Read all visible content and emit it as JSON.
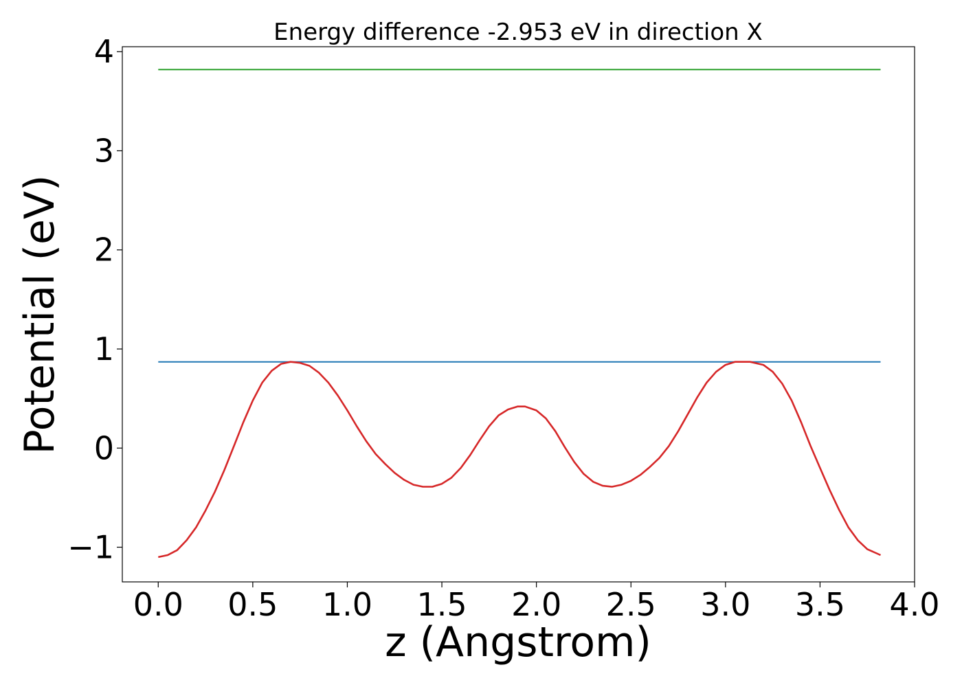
{
  "chart_data": {
    "type": "line",
    "title": "Energy difference -2.953 eV in direction X",
    "xlabel": "z (Angstrom)",
    "ylabel": "Potential (eV)",
    "xlim": [
      -0.19,
      4.0
    ],
    "ylim": [
      -1.35,
      4.05
    ],
    "x_ticks": [
      0.0,
      0.5,
      1.0,
      1.5,
      2.0,
      2.5,
      3.0,
      3.5,
      4.0
    ],
    "x_tick_labels": [
      "0.0",
      "0.5",
      "1.0",
      "1.5",
      "2.0",
      "2.5",
      "3.0",
      "3.5",
      "4.0"
    ],
    "y_ticks": [
      -1,
      0,
      1,
      2,
      3,
      4
    ],
    "y_tick_labels": [
      "−1",
      "0",
      "1",
      "2",
      "3",
      "4"
    ],
    "grid": false,
    "legend": "none",
    "series": [
      {
        "color": "#2ca02c",
        "x": [
          0.0,
          3.82
        ],
        "y": [
          3.82,
          3.82
        ]
      },
      {
        "color": "#1f77b4",
        "x": [
          0.0,
          3.82
        ],
        "y": [
          0.87,
          0.87
        ]
      },
      {
        "color": "#d62728",
        "x": [
          0.0,
          0.05,
          0.1,
          0.15,
          0.2,
          0.25,
          0.3,
          0.35,
          0.4,
          0.45,
          0.5,
          0.55,
          0.6,
          0.65,
          0.7,
          0.75,
          0.8,
          0.85,
          0.9,
          0.95,
          1.0,
          1.05,
          1.1,
          1.15,
          1.2,
          1.25,
          1.3,
          1.35,
          1.4,
          1.45,
          1.5,
          1.55,
          1.6,
          1.65,
          1.7,
          1.75,
          1.8,
          1.85,
          1.9,
          1.94,
          2.0,
          2.05,
          2.1,
          2.15,
          2.2,
          2.25,
          2.3,
          2.35,
          2.4,
          2.45,
          2.5,
          2.55,
          2.6,
          2.65,
          2.7,
          2.75,
          2.8,
          2.85,
          2.9,
          2.95,
          3.0,
          3.05,
          3.1,
          3.13,
          3.2,
          3.25,
          3.3,
          3.35,
          3.4,
          3.45,
          3.5,
          3.55,
          3.6,
          3.65,
          3.7,
          3.75,
          3.82
        ],
        "y": [
          -1.1,
          -1.08,
          -1.03,
          -0.93,
          -0.8,
          -0.63,
          -0.44,
          -0.22,
          0.02,
          0.26,
          0.48,
          0.66,
          0.78,
          0.85,
          0.87,
          0.86,
          0.83,
          0.76,
          0.66,
          0.53,
          0.38,
          0.22,
          0.07,
          -0.06,
          -0.16,
          -0.25,
          -0.32,
          -0.37,
          -0.39,
          -0.39,
          -0.36,
          -0.3,
          -0.2,
          -0.07,
          0.08,
          0.22,
          0.33,
          0.39,
          0.42,
          0.42,
          0.38,
          0.3,
          0.17,
          0.01,
          -0.14,
          -0.26,
          -0.34,
          -0.38,
          -0.39,
          -0.37,
          -0.33,
          -0.27,
          -0.19,
          -0.1,
          0.02,
          0.17,
          0.34,
          0.51,
          0.66,
          0.77,
          0.84,
          0.87,
          0.87,
          0.87,
          0.84,
          0.77,
          0.65,
          0.48,
          0.26,
          0.02,
          -0.2,
          -0.42,
          -0.62,
          -0.8,
          -0.93,
          -1.02,
          -1.08
        ]
      }
    ]
  }
}
